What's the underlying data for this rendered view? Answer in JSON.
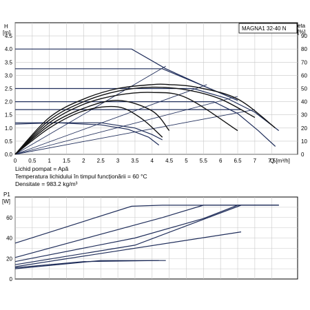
{
  "chart_data": [
    {
      "type": "line",
      "model_label": "MAGNA1 32-40 N",
      "left_axis": {
        "label_line1": "H",
        "label_line2": "[m]",
        "range": [
          0,
          5.0
        ],
        "ticks": [
          "0.0",
          "0.5",
          "1.0",
          "1.5",
          "2.0",
          "2.5",
          "3.0",
          "3.5",
          "4.0",
          "4.5"
        ]
      },
      "right_axis": {
        "label_line1": "eta",
        "label_line2": "[%]",
        "range": [
          0,
          100
        ],
        "ticks": [
          "0",
          "10",
          "20",
          "30",
          "40",
          "50",
          "60",
          "70",
          "80",
          "90"
        ]
      },
      "x_axis": {
        "label": "Q [m³/h]",
        "range": [
          0,
          8.25
        ],
        "ticks": [
          "0",
          "0.5",
          "1",
          "1.5",
          "2",
          "2.5",
          "3",
          "3.5",
          "4",
          "4.5",
          "5",
          "5.5",
          "6",
          "6.5",
          "7",
          "7.5"
        ]
      },
      "grid": true,
      "head_curves": [
        {
          "x": [
            0,
            3.4,
            4.4,
            5.5,
            6.5
          ],
          "y": [
            4.0,
            4.0,
            3.25,
            2.6,
            2.05
          ]
        },
        {
          "x": [
            0,
            4.3,
            5.5,
            6.5
          ],
          "y": [
            3.25,
            3.25,
            2.6,
            2.05
          ]
        },
        {
          "x": [
            0,
            5.2,
            6.2,
            7.0,
            7.7
          ],
          "y": [
            2.5,
            2.5,
            2.12,
            1.6,
            0.9
          ]
        },
        {
          "x": [
            0,
            5.8,
            6.5,
            7.1,
            7.6
          ],
          "y": [
            2.0,
            2.0,
            1.55,
            0.9,
            0.3
          ]
        },
        {
          "x": [
            0,
            6.6
          ],
          "y": [
            1.7,
            1.7
          ]
        },
        {
          "x": [
            0,
            2.5,
            3.5,
            4.0,
            4.3
          ],
          "y": [
            1.2,
            1.2,
            1.0,
            0.75,
            0.55
          ]
        },
        {
          "x": [
            0,
            1.2,
            2.5,
            3.3,
            3.9,
            4.2
          ],
          "y": [
            1.15,
            1.2,
            1.12,
            0.95,
            0.65,
            0.35
          ]
        }
      ],
      "eta_curves": [
        {
          "x": [
            0,
            1,
            2,
            3,
            4,
            4.5,
            5.3,
            6.5,
            7.6
          ],
          "y": [
            0,
            28,
            42,
            50,
            53,
            53,
            51,
            42,
            20
          ]
        },
        {
          "x": [
            0,
            1,
            2,
            3,
            4,
            5,
            6,
            7
          ],
          "y": [
            0,
            26,
            40,
            48,
            51,
            49,
            42,
            28
          ]
        },
        {
          "x": [
            0,
            1,
            2,
            3,
            4,
            5,
            6.5
          ],
          "y": [
            0,
            24,
            38,
            45,
            47,
            43,
            18
          ]
        },
        {
          "x": [
            0,
            1,
            2,
            3,
            4,
            4.5
          ],
          "y": [
            0,
            22,
            35,
            41,
            33,
            18
          ]
        },
        {
          "x": [
            0,
            1,
            2,
            3,
            3.7,
            4.3
          ],
          "y": [
            0,
            20,
            33,
            36,
            27,
            13
          ]
        }
      ],
      "system_curves": [
        {
          "x": [
            0,
            4.4
          ],
          "y": [
            0,
            3.35
          ]
        },
        {
          "x": [
            0,
            5.6
          ],
          "y": [
            0,
            2.65
          ]
        },
        {
          "x": [
            0,
            6.5
          ],
          "y": [
            0,
            2.2
          ]
        },
        {
          "x": [
            0,
            7.0
          ],
          "y": [
            0,
            1.7
          ]
        }
      ]
    },
    {
      "type": "line",
      "left_axis": {
        "label_line1": "P1",
        "label_line2": "[W]",
        "range": [
          0,
          80
        ],
        "ticks": [
          "0",
          "20",
          "40",
          "60"
        ]
      },
      "x_axis": {
        "range": [
          0,
          8.25
        ]
      },
      "grid": true,
      "power_curves": [
        {
          "x": [
            0,
            3.4,
            4.3,
            7.7
          ],
          "y": [
            35,
            71,
            72,
            72
          ]
        },
        {
          "x": [
            0,
            4.3,
            5.5,
            7.7
          ],
          "y": [
            21,
            60,
            72,
            72
          ]
        },
        {
          "x": [
            0,
            3.5,
            5.5,
            6.5,
            7.7
          ],
          "y": [
            17,
            40,
            59,
            72,
            72
          ]
        },
        {
          "x": [
            0,
            3.5,
            6.6,
            7.7
          ],
          "y": [
            14,
            33,
            72,
            72
          ]
        },
        {
          "x": [
            0,
            6.6
          ],
          "y": [
            12,
            46
          ]
        },
        {
          "x": [
            0,
            2.5,
            4.4
          ],
          "y": [
            10,
            18,
            18
          ]
        },
        {
          "x": [
            0,
            2.0,
            4.2
          ],
          "y": [
            11,
            17,
            18
          ]
        }
      ]
    }
  ],
  "notes": {
    "line1": "Lichid pompat = Apă",
    "line2": "Temperatura lichidului în timpul funcționării = 60 °C",
    "line3": "Densitate = 983.2 kg/m³"
  }
}
